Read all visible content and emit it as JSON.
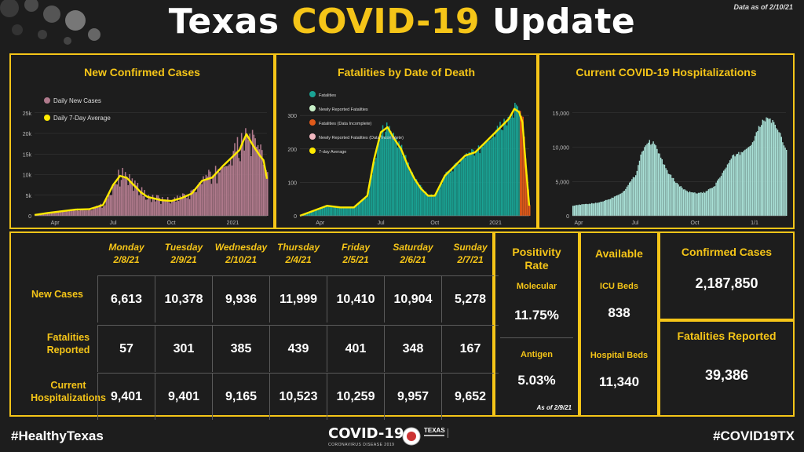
{
  "header": {
    "title_part1": "Texas",
    "title_part2": "COVID-19",
    "title_part3": "Update",
    "data_as_of": "Data as of 2/10/21"
  },
  "colors": {
    "accent": "#f5c518",
    "cases_bar": "#b07a8c",
    "fatal_bar": "#1aa394",
    "hosp_bar": "#a9e0d6",
    "avg_line": "#ffea00",
    "incomplete": "#e05a1a"
  },
  "chart_data": [
    {
      "id": "cases",
      "type": "bar",
      "title": "New Confirmed Cases",
      "legend": [
        "Daily New Cases",
        "Daily 7-Day Average"
      ],
      "x_tick_labels": [
        "Apr",
        "Jul",
        "Oct",
        "2021"
      ],
      "y_tick_labels": [
        "0",
        "5k",
        "10k",
        "15k",
        "20k",
        "25k"
      ],
      "ylim": [
        0,
        28000
      ],
      "x_days": [
        0,
        340
      ],
      "series": [
        {
          "name": "Daily 7-Day Average",
          "x": [
            0,
            20,
            40,
            60,
            80,
            100,
            115,
            125,
            135,
            145,
            155,
            165,
            175,
            185,
            200,
            215,
            230,
            245,
            260,
            275,
            290,
            300,
            305,
            310,
            320,
            330,
            335,
            340
          ],
          "values": [
            200,
            700,
            1100,
            1500,
            1600,
            2600,
            7500,
            9700,
            9200,
            7500,
            5800,
            4600,
            4200,
            3800,
            3600,
            4300,
            5400,
            8500,
            9300,
            12000,
            14400,
            16000,
            18000,
            19800,
            17000,
            14500,
            13500,
            9000
          ]
        }
      ]
    },
    {
      "id": "fatalities",
      "type": "bar",
      "title": "Fatalities by Date of Death",
      "legend": [
        "Fatalities",
        "Newly Reported Fatalities",
        "Fatalities (Data Incomplete)",
        "Newly Reported Fatalities (Data Incomplete)",
        "7-day Average"
      ],
      "x_tick_labels": [
        "Apr",
        "Jul",
        "Oct",
        "2021"
      ],
      "y_tick_labels": [
        "0",
        "100",
        "200",
        "300"
      ],
      "ylim": [
        0,
        345
      ],
      "x_days": [
        0,
        340
      ],
      "series": [
        {
          "name": "7-day Average",
          "x": [
            0,
            20,
            40,
            60,
            80,
            100,
            110,
            120,
            130,
            140,
            150,
            160,
            170,
            180,
            190,
            200,
            215,
            230,
            245,
            260,
            275,
            290,
            300,
            310,
            318,
            325,
            330,
            335,
            340
          ],
          "values": [
            0,
            15,
            30,
            25,
            25,
            60,
            170,
            250,
            265,
            230,
            200,
            150,
            110,
            80,
            60,
            60,
            120,
            150,
            180,
            190,
            220,
            250,
            270,
            290,
            320,
            310,
            280,
            150,
            30
          ]
        }
      ]
    },
    {
      "id": "hospitalizations",
      "type": "bar",
      "title": "Current COVID-19 Hospitalizations",
      "x_tick_labels": [
        "Apr",
        "Jul",
        "Oct",
        "1/1"
      ],
      "y_tick_labels": [
        "0",
        "5,000",
        "10,000",
        "15,000"
      ],
      "ylim": [
        0,
        16800
      ],
      "x_days": [
        0,
        340
      ],
      "series": [
        {
          "name": "Hospitalizations",
          "x": [
            0,
            20,
            40,
            60,
            80,
            100,
            110,
            120,
            130,
            140,
            150,
            165,
            180,
            195,
            210,
            225,
            240,
            255,
            270,
            285,
            300,
            310,
            315,
            320,
            325,
            330,
            340
          ],
          "values": [
            1500,
            1700,
            1900,
            2500,
            3500,
            6000,
            9500,
            10800,
            10500,
            8500,
            6500,
            4800,
            3600,
            3300,
            3400,
            4300,
            6500,
            8700,
            9300,
            10500,
            13500,
            14300,
            14000,
            13400,
            12500,
            11800,
            9400
          ]
        }
      ]
    }
  ],
  "table": {
    "days": [
      {
        "day": "Monday",
        "date": "2/8/21"
      },
      {
        "day": "Tuesday",
        "date": "2/9/21"
      },
      {
        "day": "Wednesday",
        "date": "2/10/21"
      },
      {
        "day": "Thursday",
        "date": "2/4/21"
      },
      {
        "day": "Friday",
        "date": "2/5/21"
      },
      {
        "day": "Saturday",
        "date": "2/6/21"
      },
      {
        "day": "Sunday",
        "date": "2/7/21"
      }
    ],
    "rows": [
      {
        "label": "New Cases",
        "values": [
          "6,613",
          "10,378",
          "9,936",
          "11,999",
          "10,410",
          "10,904",
          "5,278"
        ]
      },
      {
        "label": "Fatalities Reported",
        "values": [
          "57",
          "301",
          "385",
          "439",
          "401",
          "348",
          "167"
        ]
      },
      {
        "label": "Current Hospitalizations",
        "values": [
          "9,401",
          "9,401",
          "9,165",
          "10,523",
          "10,259",
          "9,957",
          "9,652"
        ]
      }
    ]
  },
  "positivity": {
    "title": "Positivity Rate",
    "molecular_label": "Molecular",
    "molecular_value": "11.75%",
    "antigen_label": "Antigen",
    "antigen_value": "5.03%",
    "as_of": "As of 2/9/21"
  },
  "available": {
    "title": "Available",
    "icu_label": "ICU Beds",
    "icu_value": "838",
    "hospital_label": "Hospital Beds",
    "hospital_value": "11,340"
  },
  "totals": {
    "confirmed_label": "Confirmed Cases",
    "confirmed_value": "2,187,850",
    "fatalities_label": "Fatalities Reported",
    "fatalities_value": "39,386"
  },
  "footer": {
    "left_tag": "#HealthyTexas",
    "right_tag": "#COVID19TX",
    "logo_text": "COVID-19",
    "logo_subtext": "CORONAVIRUS DISEASE 2019",
    "dshs_text": "TEXAS"
  }
}
